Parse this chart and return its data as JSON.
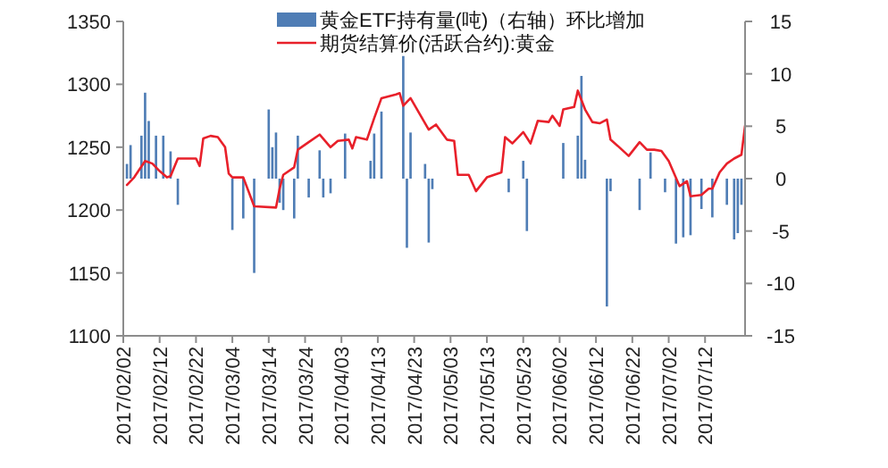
{
  "chart_data": {
    "type": "bar",
    "legend": "top",
    "xlim": [
      "2017-02-02",
      "2017-07-23"
    ],
    "xticks": [
      {
        "value": "2017-02-02",
        "label": "2017/02/02"
      },
      {
        "value": "2017-02-12",
        "label": "2017/02/12"
      },
      {
        "value": "2017-02-22",
        "label": "2017/02/22"
      },
      {
        "value": "2017-03-04",
        "label": "2017/03/04"
      },
      {
        "value": "2017-03-14",
        "label": "2017/03/14"
      },
      {
        "value": "2017-03-24",
        "label": "2017/03/24"
      },
      {
        "value": "2017-04-03",
        "label": "2017/04/03"
      },
      {
        "value": "2017-04-13",
        "label": "2017/04/13"
      },
      {
        "value": "2017-04-23",
        "label": "2017/04/23"
      },
      {
        "value": "2017-05-03",
        "label": "2017/05/03"
      },
      {
        "value": "2017-05-13",
        "label": "2017/05/13"
      },
      {
        "value": "2017-05-23",
        "label": "2017/05/23"
      },
      {
        "value": "2017-06-02",
        "label": "2017/06/02"
      },
      {
        "value": "2017-06-12",
        "label": "2017/06/12"
      },
      {
        "value": "2017-06-22",
        "label": "2017/06/22"
      },
      {
        "value": "2017-07-02",
        "label": "2017/07/02"
      },
      {
        "value": "2017-07-12",
        "label": "2017/07/12"
      }
    ],
    "ylim": [
      1100,
      1350
    ],
    "yticks": [
      1100,
      1150,
      1200,
      1250,
      1300,
      1350
    ],
    "y2lim": [
      -15,
      15
    ],
    "y2ticks": [
      -15,
      -10,
      -5,
      0,
      5,
      10,
      15
    ],
    "series": [
      {
        "name": "黄金ETF持有量(吨)（右轴）环比增加",
        "axis": "y2",
        "color": "#4f7db5",
        "x": [
          "2017-02-03",
          "2017-02-04",
          "2017-02-07",
          "2017-02-08",
          "2017-02-09",
          "2017-02-11",
          "2017-02-13",
          "2017-02-15",
          "2017-02-17",
          "2017-03-04",
          "2017-03-07",
          "2017-03-10",
          "2017-03-14",
          "2017-03-15",
          "2017-03-16",
          "2017-03-17",
          "2017-03-18",
          "2017-03-21",
          "2017-03-22",
          "2017-03-25",
          "2017-03-28",
          "2017-03-29",
          "2017-03-31",
          "2017-04-04",
          "2017-04-11",
          "2017-04-12",
          "2017-04-14",
          "2017-04-20",
          "2017-04-21",
          "2017-04-22",
          "2017-04-26",
          "2017-04-27",
          "2017-04-28",
          "2017-05-19",
          "2017-05-23",
          "2017-05-24",
          "2017-06-03",
          "2017-06-07",
          "2017-06-08",
          "2017-06-09",
          "2017-06-15",
          "2017-06-16",
          "2017-06-24",
          "2017-06-27",
          "2017-07-01",
          "2017-07-04",
          "2017-07-06",
          "2017-07-08",
          "2017-07-11",
          "2017-07-14",
          "2017-07-18",
          "2017-07-20",
          "2017-07-21",
          "2017-07-22"
        ],
        "values": [
          1.4,
          3.2,
          4.1,
          8.2,
          5.5,
          4.1,
          4.1,
          2.6,
          -2.5,
          -4.9,
          -3.8,
          -9.0,
          6.6,
          3.0,
          4.4,
          -2.3,
          -3.0,
          -3.8,
          4.1,
          -1.8,
          2.7,
          -1.8,
          -1.4,
          4.3,
          1.7,
          4.3,
          6.4,
          11.7,
          -6.6,
          4.4,
          1.4,
          -6.1,
          -1.0,
          -1.3,
          1.7,
          -5.0,
          3.4,
          4.1,
          9.8,
          1.8,
          -12.2,
          -1.2,
          -3.0,
          2.5,
          -1.3,
          -6.2,
          -5.6,
          -5.4,
          -2.9,
          -3.7,
          -2.5,
          -5.8,
          -5.2,
          -2.5
        ]
      },
      {
        "name": "期货结算价(活跃合约):黄金",
        "type": "line",
        "color": "#e8202a",
        "x": [
          "2017-02-03",
          "2017-02-05",
          "2017-02-08",
          "2017-02-10",
          "2017-02-12",
          "2017-02-14",
          "2017-02-15",
          "2017-02-17",
          "2017-02-22",
          "2017-02-23",
          "2017-02-24",
          "2017-02-26",
          "2017-02-28",
          "2017-03-02",
          "2017-03-03",
          "2017-03-04",
          "2017-03-07",
          "2017-03-10",
          "2017-03-16",
          "2017-03-17",
          "2017-03-18",
          "2017-03-21",
          "2017-03-22",
          "2017-03-25",
          "2017-03-28",
          "2017-03-31",
          "2017-04-02",
          "2017-04-05",
          "2017-04-06",
          "2017-04-07",
          "2017-04-10",
          "2017-04-12",
          "2017-04-14",
          "2017-04-18",
          "2017-04-19",
          "2017-04-20",
          "2017-04-22",
          "2017-04-27",
          "2017-04-29",
          "2017-05-02",
          "2017-05-04",
          "2017-05-05",
          "2017-05-08",
          "2017-05-10",
          "2017-05-13",
          "2017-05-17",
          "2017-05-18",
          "2017-05-20",
          "2017-05-23",
          "2017-05-25",
          "2017-05-27",
          "2017-05-30",
          "2017-05-31",
          "2017-06-02",
          "2017-06-03",
          "2017-06-06",
          "2017-06-07",
          "2017-06-09",
          "2017-06-11",
          "2017-06-13",
          "2017-06-15",
          "2017-06-16",
          "2017-06-18",
          "2017-06-21",
          "2017-06-24",
          "2017-06-26",
          "2017-06-28",
          "2017-06-30",
          "2017-07-02",
          "2017-07-05",
          "2017-07-07",
          "2017-07-08",
          "2017-07-11",
          "2017-07-13",
          "2017-07-14",
          "2017-07-16",
          "2017-07-18",
          "2017-07-20",
          "2017-07-22",
          "2017-07-23"
        ],
        "values": [
          1220,
          1226,
          1239,
          1237,
          1231,
          1226,
          1227,
          1241,
          1241,
          1235,
          1257,
          1259,
          1258,
          1250,
          1229,
          1226,
          1226,
          1203,
          1202,
          1217,
          1228,
          1234,
          1248,
          1254,
          1260,
          1250,
          1255,
          1256,
          1249,
          1258,
          1256,
          1273,
          1289,
          1292,
          1293,
          1283,
          1289,
          1264,
          1268,
          1256,
          1255,
          1228,
          1228,
          1215,
          1226,
          1230,
          1258,
          1253,
          1262,
          1253,
          1271,
          1270,
          1275,
          1267,
          1280,
          1282,
          1295,
          1280,
          1270,
          1269,
          1272,
          1256,
          1251,
          1243,
          1254,
          1248,
          1248,
          1247,
          1239,
          1219,
          1223,
          1211,
          1212,
          1217,
          1217,
          1230,
          1237,
          1241,
          1244,
          1267
        ]
      }
    ]
  }
}
